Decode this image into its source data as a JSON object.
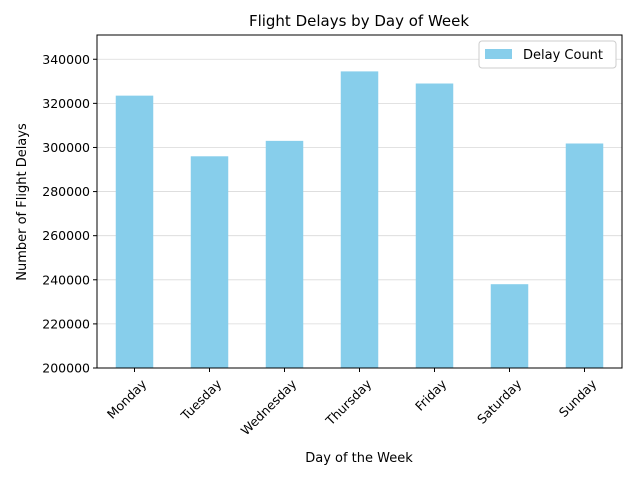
{
  "chart_data": {
    "type": "bar",
    "title": "Flight Delays by Day of Week",
    "xlabel": "Day of the Week",
    "ylabel": "Number of Flight Delays",
    "categories": [
      "Monday",
      "Tuesday",
      "Wednesday",
      "Thursday",
      "Friday",
      "Saturday",
      "Sunday"
    ],
    "series": [
      {
        "name": "Delay Count",
        "color": "#87ceeb",
        "values": [
          323500,
          296000,
          303000,
          334500,
          329000,
          238000,
          301800
        ]
      }
    ],
    "ylim": [
      200000,
      351000
    ],
    "yticks": [
      200000,
      220000,
      240000,
      260000,
      280000,
      300000,
      320000,
      340000
    ],
    "ytick_labels": [
      "200000",
      "220000",
      "240000",
      "260000",
      "280000",
      "300000",
      "320000",
      "340000"
    ],
    "grid": "y",
    "legend_position": "upper-right"
  }
}
